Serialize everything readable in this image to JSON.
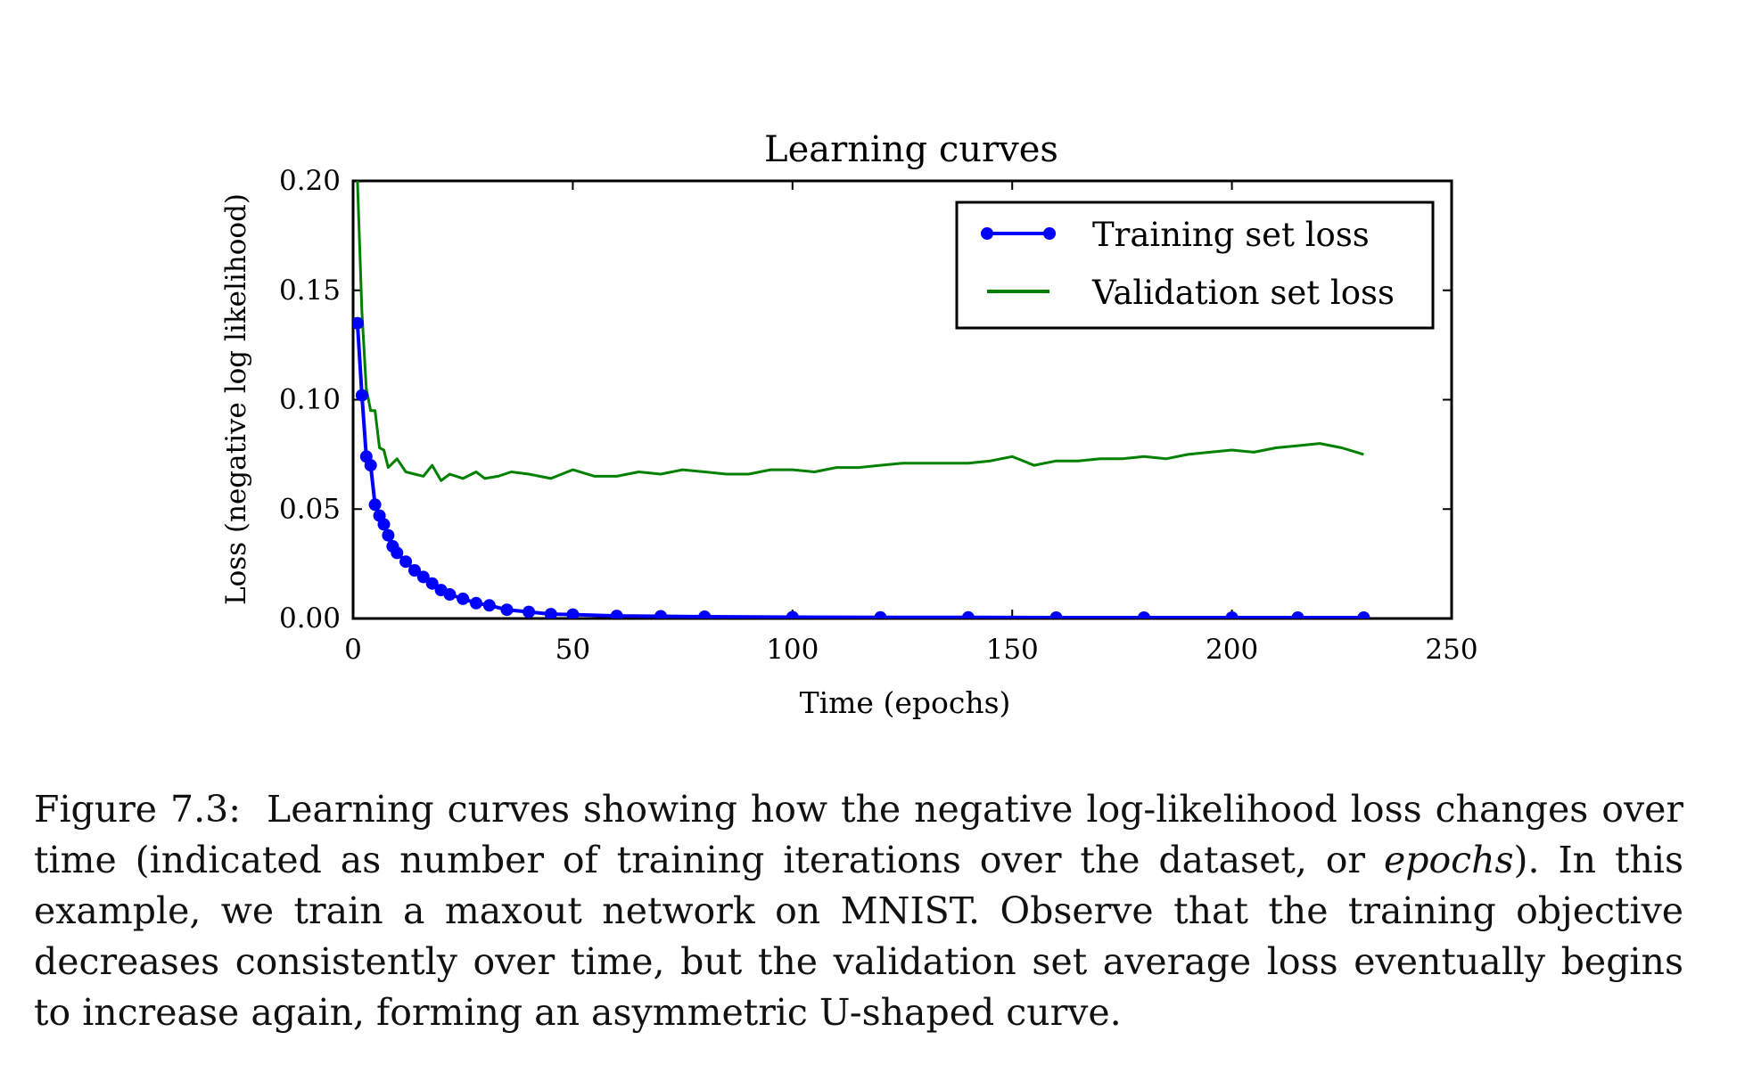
{
  "chart_data": {
    "type": "line",
    "title": "Learning curves",
    "xlabel": "Time (epochs)",
    "ylabel": "Loss (negative log likelihood)",
    "xlim": [
      0,
      250
    ],
    "ylim": [
      0.0,
      0.2
    ],
    "xticks": [
      "0",
      "50",
      "100",
      "150",
      "200",
      "250"
    ],
    "yticks": [
      "0.00",
      "0.05",
      "0.10",
      "0.15",
      "0.20"
    ],
    "grid": false,
    "legend": "top-right",
    "series": [
      {
        "name": "Training set loss",
        "color": "#0000ff",
        "marker": "circle",
        "x": [
          1,
          2,
          3,
          4,
          5,
          6,
          7,
          8,
          9,
          10,
          12,
          14,
          16,
          18,
          20,
          22,
          25,
          28,
          31,
          35,
          40,
          45,
          50,
          60,
          70,
          80,
          100,
          120,
          140,
          160,
          180,
          200,
          215,
          230
        ],
        "values": [
          0.135,
          0.102,
          0.074,
          0.07,
          0.052,
          0.047,
          0.043,
          0.038,
          0.033,
          0.03,
          0.026,
          0.022,
          0.019,
          0.016,
          0.013,
          0.011,
          0.009,
          0.007,
          0.006,
          0.004,
          0.003,
          0.002,
          0.0018,
          0.0012,
          0.001,
          0.0008,
          0.0006,
          0.0005,
          0.0005,
          0.0004,
          0.0004,
          0.0004,
          0.0004,
          0.0004
        ]
      },
      {
        "name": "Validation set loss",
        "color": "#008000",
        "marker": "none",
        "x": [
          1,
          2,
          3,
          4,
          5,
          6,
          7,
          8,
          10,
          12,
          14,
          16,
          18,
          20,
          22,
          25,
          28,
          30,
          33,
          36,
          40,
          45,
          50,
          55,
          60,
          65,
          70,
          75,
          80,
          85,
          90,
          95,
          100,
          105,
          110,
          115,
          120,
          125,
          130,
          135,
          140,
          145,
          150,
          155,
          160,
          165,
          170,
          175,
          180,
          185,
          190,
          195,
          200,
          205,
          210,
          215,
          220,
          225,
          230
        ],
        "values": [
          0.2,
          0.14,
          0.105,
          0.095,
          0.095,
          0.078,
          0.077,
          0.069,
          0.073,
          0.067,
          0.066,
          0.065,
          0.07,
          0.063,
          0.066,
          0.064,
          0.067,
          0.064,
          0.065,
          0.067,
          0.066,
          0.064,
          0.068,
          0.065,
          0.065,
          0.067,
          0.066,
          0.068,
          0.067,
          0.066,
          0.066,
          0.068,
          0.068,
          0.067,
          0.069,
          0.069,
          0.07,
          0.071,
          0.071,
          0.071,
          0.071,
          0.072,
          0.074,
          0.07,
          0.072,
          0.072,
          0.073,
          0.073,
          0.074,
          0.073,
          0.075,
          0.076,
          0.077,
          0.076,
          0.078,
          0.079,
          0.08,
          0.078,
          0.075
        ]
      }
    ]
  },
  "caption": {
    "label": "Figure 7.3:",
    "text_before": "Learning curves showing how the negative log-likelihood loss changes over time (indicated as number of training iterations over the dataset, or ",
    "emphasis": "epochs",
    "text_after": "). In this example, we train a maxout network on MNIST. Observe that the training objective decreases consistently over time, but the validation set average loss eventually begins to increase again, forming an asymmetric U-shaped curve."
  }
}
